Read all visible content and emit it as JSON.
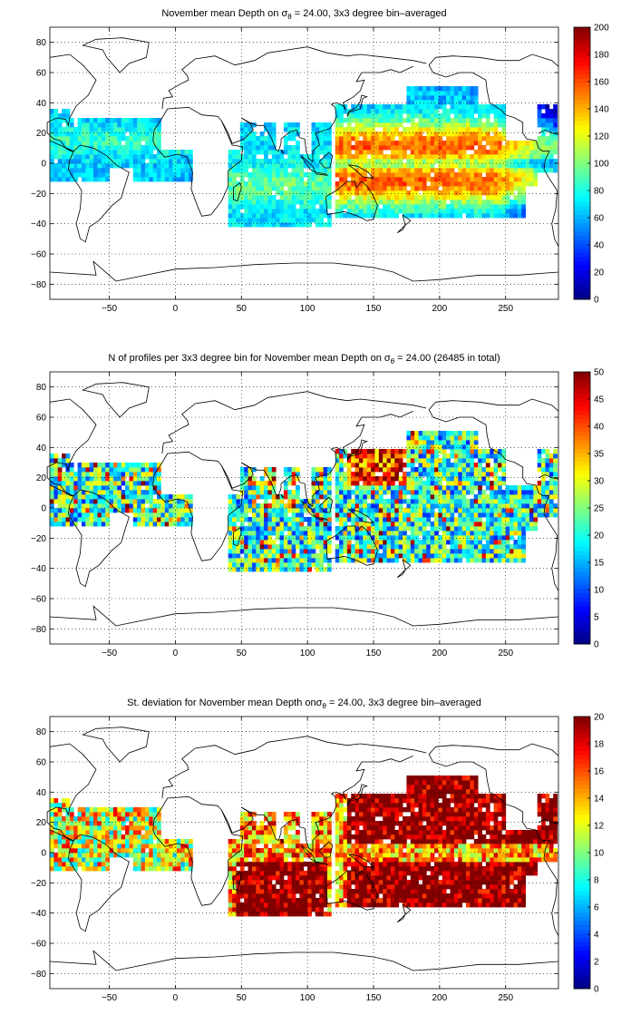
{
  "chart_data": [
    {
      "type": "heatmap",
      "title": {
        "pre": "November mean Depth on ",
        "sym": "σ",
        "sub": "θ",
        "post": " = 24.00, 3x3 degree bin–averaged"
      },
      "xlabel": "",
      "ylabel": "",
      "xlim": [
        -95,
        290
      ],
      "ylim": [
        -90,
        90
      ],
      "x_ticks": [
        -50,
        0,
        50,
        100,
        150,
        200,
        250
      ],
      "y_ticks": [
        -80,
        -60,
        -40,
        -20,
        0,
        20,
        40,
        60,
        80
      ],
      "grid": true,
      "colormap": "jet",
      "clim": [
        0,
        200
      ],
      "colorbar_ticks": [
        0,
        20,
        40,
        60,
        80,
        100,
        120,
        140,
        160,
        180,
        200
      ],
      "field": "mean_depth"
    },
    {
      "type": "heatmap",
      "title": {
        "pre": "N of profiles per 3x3 degree bin for November mean Depth on ",
        "sym": "σ",
        "sub": "θ",
        "post": " = 24.00 (26485 in total)"
      },
      "xlabel": "",
      "ylabel": "",
      "xlim": [
        -95,
        290
      ],
      "ylim": [
        -90,
        90
      ],
      "x_ticks": [
        -50,
        0,
        50,
        100,
        150,
        200,
        250
      ],
      "y_ticks": [
        -80,
        -60,
        -40,
        -20,
        0,
        20,
        40,
        60,
        80
      ],
      "grid": true,
      "colormap": "jet",
      "clim": [
        0,
        50
      ],
      "colorbar_ticks": [
        0,
        5,
        10,
        15,
        20,
        25,
        30,
        35,
        40,
        45,
        50
      ],
      "field": "profile_count"
    },
    {
      "type": "heatmap",
      "title": {
        "pre": "St. deviation for November mean Depth on",
        "sym": "σ",
        "sub": "θ",
        "post": " = 24.00, 3x3 degree bin–averaged"
      },
      "xlabel": "",
      "ylabel": "",
      "xlim": [
        -95,
        290
      ],
      "ylim": [
        -90,
        90
      ],
      "x_ticks": [
        -50,
        0,
        50,
        100,
        150,
        200,
        250
      ],
      "y_ticks": [
        -80,
        -60,
        -40,
        -20,
        0,
        20,
        40,
        60,
        80
      ],
      "grid": true,
      "colormap": "jet",
      "clim": [
        0,
        20
      ],
      "colorbar_ticks": [
        0,
        2,
        4,
        6,
        8,
        10,
        12,
        14,
        16,
        18,
        20
      ],
      "field": "std_depth"
    }
  ]
}
